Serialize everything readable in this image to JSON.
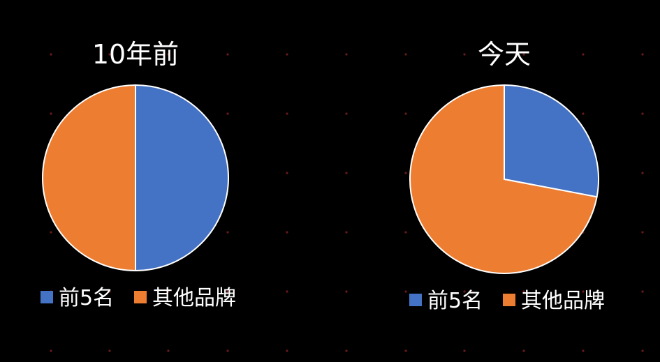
{
  "colors": {
    "background": "#000000",
    "top5": "#4472C4",
    "others": "#ED7D31",
    "stroke": "#FFFFFF",
    "grid_dot": "#6b1a1a"
  },
  "chart_data": [
    {
      "type": "pie",
      "title": "10年前",
      "slices": [
        {
          "label": "前5名",
          "value": 50,
          "color": "#4472C4"
        },
        {
          "label": "其他品牌",
          "value": 50,
          "color": "#ED7D31"
        }
      ],
      "start_angle_deg": 0,
      "direction": "clockwise",
      "legend_position": "bottom",
      "legend": [
        "前5名",
        "其他品牌"
      ]
    },
    {
      "type": "pie",
      "title": "今天",
      "slices": [
        {
          "label": "前5名",
          "value": 28,
          "color": "#4472C4"
        },
        {
          "label": "其他品牌",
          "value": 72,
          "color": "#ED7D31"
        }
      ],
      "start_angle_deg": 0,
      "direction": "clockwise",
      "legend_position": "bottom",
      "legend": [
        "前5名",
        "其他品牌"
      ]
    }
  ]
}
